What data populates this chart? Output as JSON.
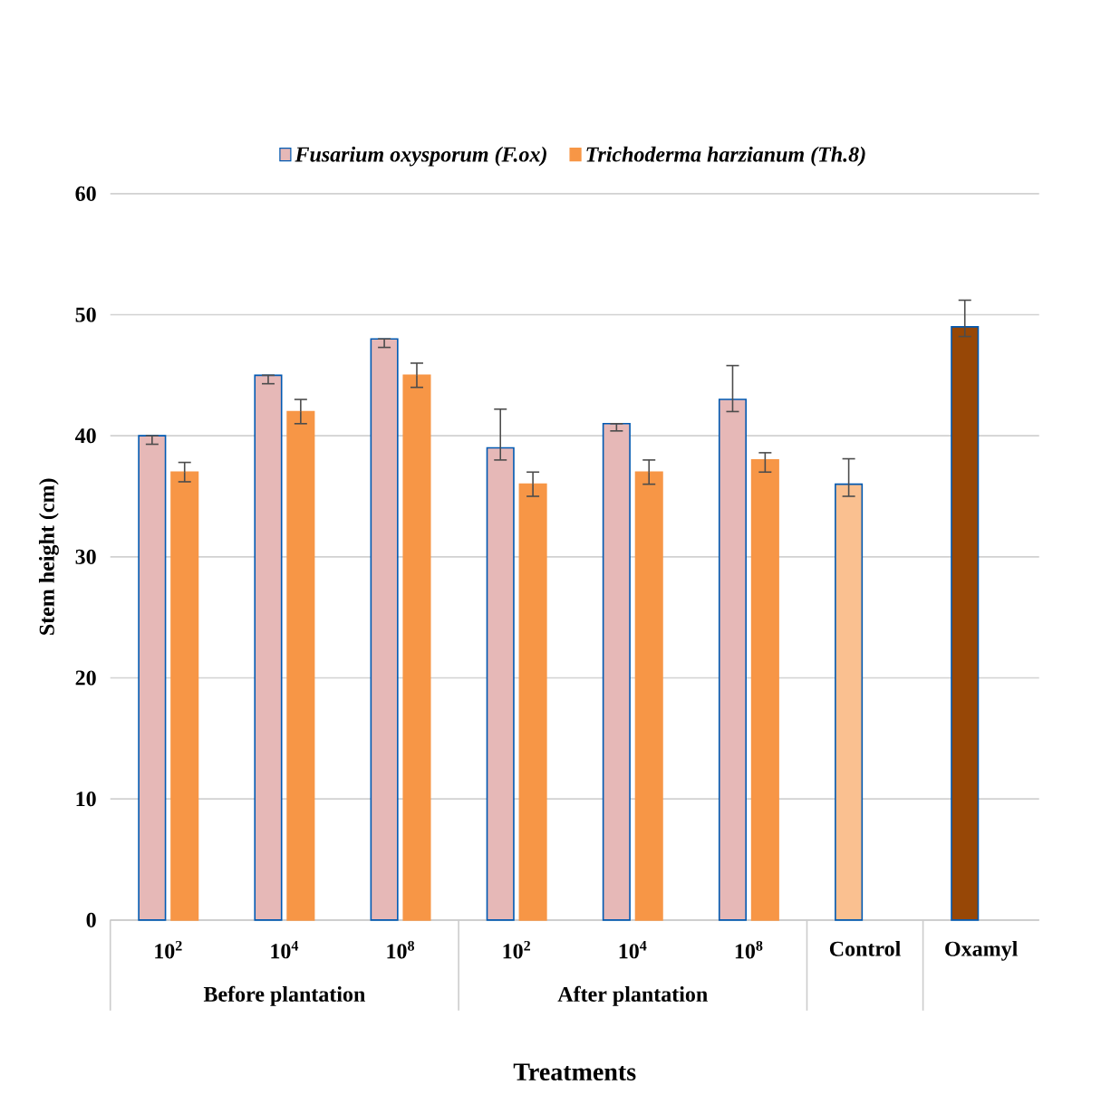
{
  "chart_data": {
    "type": "bar",
    "categories": [
      "10$^{2}$",
      "10$^{4}$",
      "10$^{8}$",
      "10$^{2}$",
      "10$^{4}$",
      "10$^{8}$",
      "Control",
      "Oxamyl"
    ],
    "series": [
      {
        "name": "Fusarium oxysporum  (F.ox)",
        "color": "#e6b8b7",
        "colors": [
          "#e6b8b7",
          "#e6b8b7",
          "#e6b8b7",
          "#e6b8b7",
          "#e6b8b7",
          "#e6b8b7",
          "#fac090",
          "#974706"
        ],
        "values": [
          40,
          45,
          48,
          39,
          41,
          43,
          36,
          49
        ],
        "errors": [
          [
            39.3,
            40
          ],
          [
            44.3,
            45
          ],
          [
            47.3,
            48
          ],
          [
            38,
            42.2
          ],
          [
            40.4,
            41
          ],
          [
            42,
            45.8
          ],
          [
            35,
            38.1
          ],
          [
            48.2,
            51.2
          ]
        ]
      },
      {
        "name": "Trichoderma harzianum (Th.8)",
        "color": "#f79646",
        "values": [
          37,
          42,
          45,
          36,
          37,
          38,
          null,
          null
        ],
        "errors": [
          [
            36.2,
            37.8
          ],
          [
            41,
            43
          ],
          [
            44,
            46
          ],
          [
            35,
            37
          ],
          [
            36,
            38
          ],
          [
            37,
            38.6
          ],
          null,
          null
        ]
      }
    ],
    "ylim": [
      0,
      60
    ],
    "yticks": [
      0,
      10,
      20,
      30,
      40,
      50,
      60
    ],
    "ylabel": "Stem height (cm)",
    "xlabel": "Treatments",
    "annotations": [
      "Before plantation",
      "After plantation"
    ],
    "grid": "y",
    "legend": "top"
  }
}
